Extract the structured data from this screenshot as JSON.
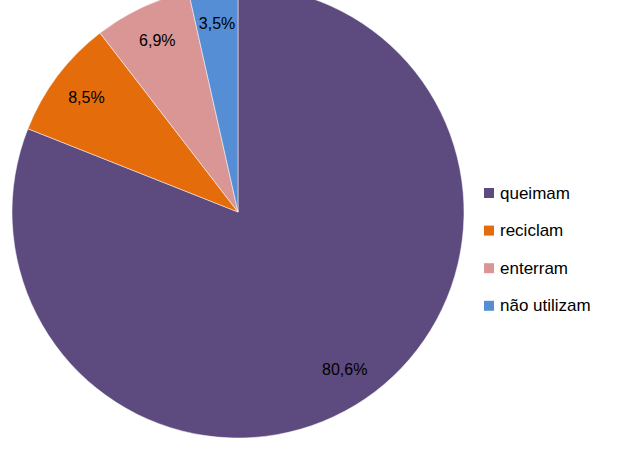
{
  "chart_data": {
    "type": "pie",
    "categories": [
      "queimam",
      "reciclam",
      "enterram",
      "não utilizam"
    ],
    "values": [
      80.6,
      8.5,
      6.9,
      3.5
    ],
    "value_labels": [
      "80,6%",
      "8,5%",
      "6,9%",
      "3,5%"
    ],
    "colors": [
      "#5d4a7e",
      "#e46c0a",
      "#d99694",
      "#558ed5"
    ],
    "data_labels": true,
    "legend": "right"
  }
}
